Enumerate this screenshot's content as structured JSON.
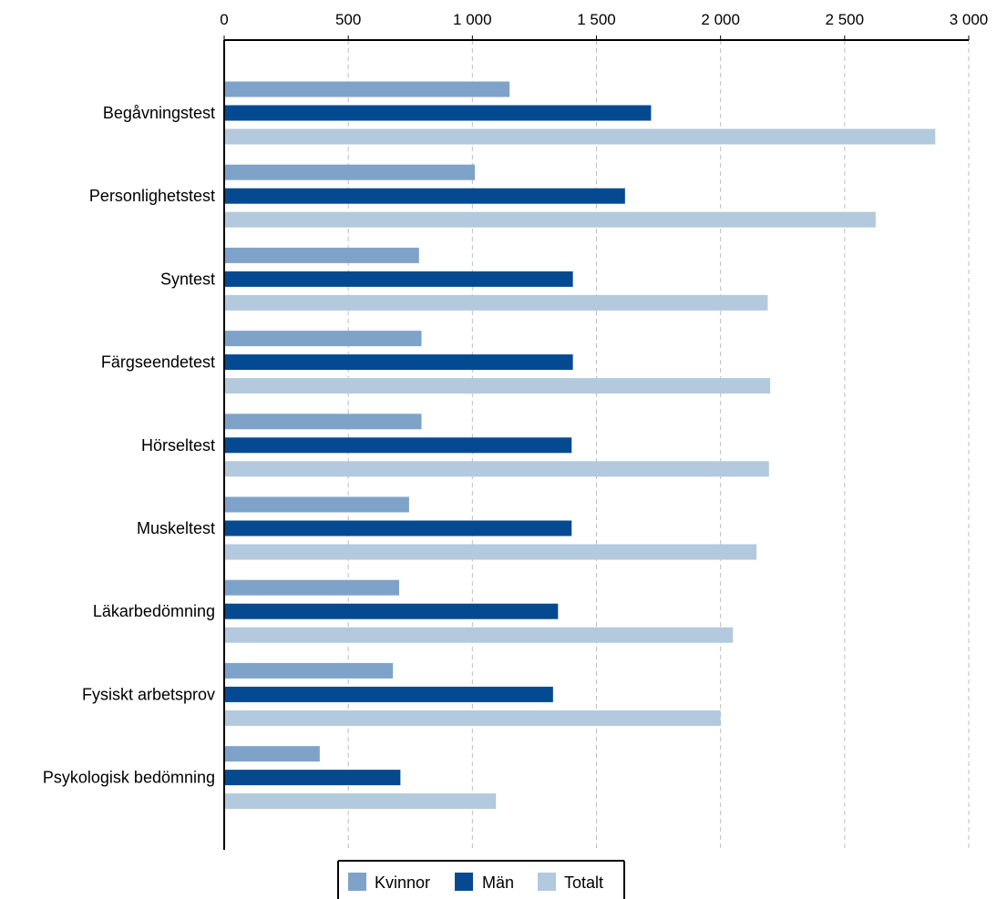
{
  "chart_data": {
    "type": "bar",
    "orientation": "horizontal",
    "categories": [
      "Begåvningstest",
      "Personlighetstest",
      "Syntest",
      "Färgseendetest",
      "Hörseltest",
      "Muskeltest",
      "Läkarbedömning",
      "Fysiskt arbetsprov",
      "Psykologisk bedömning"
    ],
    "series": [
      {
        "name": "Kvinnor",
        "color": "#7fa3c8",
        "values": [
          1150,
          1010,
          785,
          795,
          795,
          745,
          705,
          680,
          385
        ]
      },
      {
        "name": "Män",
        "color": "#054a91",
        "values": [
          1720,
          1615,
          1405,
          1405,
          1400,
          1400,
          1345,
          1325,
          710
        ]
      },
      {
        "name": "Totalt",
        "color": "#b3c9dd",
        "values": [
          2865,
          2625,
          2190,
          2200,
          2195,
          2145,
          2050,
          2000,
          1095
        ]
      }
    ],
    "xlim": [
      0,
      3000
    ],
    "x_ticks": [
      0,
      500,
      1000,
      1500,
      2000,
      2500,
      3000
    ],
    "x_tick_labels": [
      "0",
      "500",
      "1 000",
      "1 500",
      "2 000",
      "2 500",
      "3 000"
    ],
    "axis_position": "top",
    "grid": "vertical dashed",
    "legend_position": "bottom-center",
    "title": "",
    "xlabel": "",
    "ylabel": ""
  }
}
